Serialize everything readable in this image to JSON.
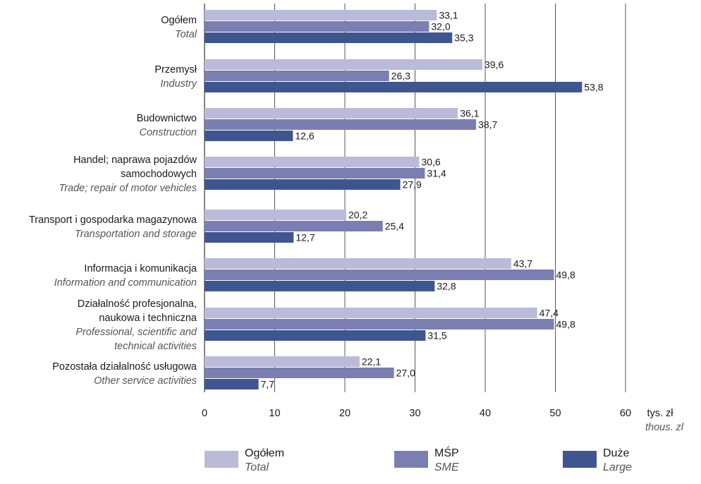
{
  "chart_data": {
    "type": "bar",
    "orientation": "horizontal",
    "categories": [
      {
        "lines": [
          "Ogółem"
        ],
        "sub_lines": [
          "Total"
        ]
      },
      {
        "lines": [
          "Przemysł"
        ],
        "sub_lines": [
          "Industry"
        ]
      },
      {
        "lines": [
          "Budownictwo"
        ],
        "sub_lines": [
          "Construction"
        ]
      },
      {
        "lines": [
          "Handel; naprawa pojazdów",
          "samochodowych"
        ],
        "sub_lines": [
          "Trade; repair of motor vehicles"
        ]
      },
      {
        "lines": [
          "Transport i gospodarka magazynowa"
        ],
        "sub_lines": [
          "Transportation and storage"
        ]
      },
      {
        "lines": [
          "Informacja i komunikacja"
        ],
        "sub_lines": [
          "Information and communication"
        ]
      },
      {
        "lines": [
          "Działalność profesjonalna,",
          "naukowa i techniczna"
        ],
        "sub_lines": [
          "Professional, scientific and",
          "technical activities"
        ]
      },
      {
        "lines": [
          "Pozostała działalność usługowa"
        ],
        "sub_lines": [
          "Other service activities"
        ]
      }
    ],
    "series": [
      {
        "name": "Ogółem",
        "name_sub": "Total",
        "color": "#babbd9",
        "values": [
          33.1,
          39.6,
          36.1,
          30.6,
          20.2,
          43.7,
          47.4,
          22.1
        ],
        "labels": [
          "33,1",
          "39,6",
          "36,1",
          "30,6",
          "20,2",
          "43,7",
          "47,4",
          "22,1"
        ]
      },
      {
        "name": "MŚP",
        "name_sub": "SME",
        "color": "#7b7eb0",
        "values": [
          32.0,
          26.3,
          38.7,
          31.4,
          25.4,
          49.8,
          49.8,
          27.0
        ],
        "labels": [
          "32,0",
          "26,3",
          "38,7",
          "31,4",
          "25,4",
          "49,8",
          "49,8",
          "27,0"
        ]
      },
      {
        "name": "Duże",
        "name_sub": "Large",
        "color": "#3f5590",
        "values": [
          35.3,
          53.8,
          12.6,
          27.9,
          12.7,
          32.8,
          31.5,
          7.7
        ],
        "labels": [
          "35,3",
          "53,8",
          "12,6",
          "27,9",
          "12,7",
          "32,8",
          "31,5",
          "7,7"
        ]
      }
    ],
    "xlim": [
      0,
      60
    ],
    "x_ticks": [
      "0",
      "10",
      "20",
      "30",
      "40",
      "50",
      "60"
    ],
    "x_unit": "tys. zł",
    "x_unit_sub": "thous. zl",
    "grid": true,
    "legend_position": "bottom"
  }
}
